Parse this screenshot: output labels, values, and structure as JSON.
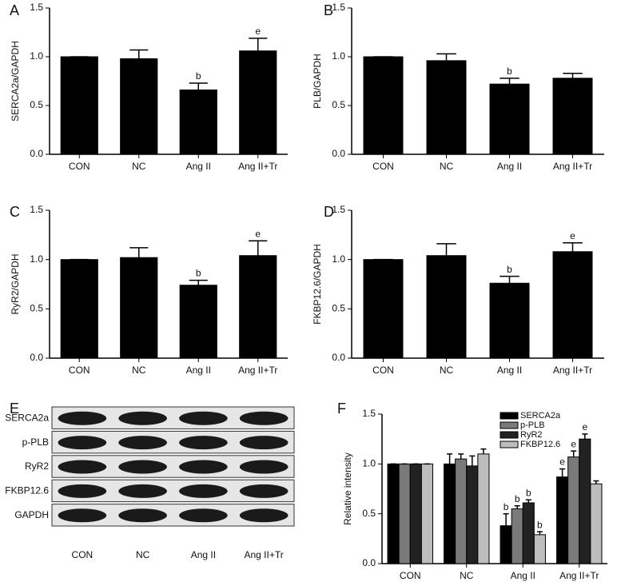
{
  "chart_data": [
    {
      "type": "bar",
      "panel": "A",
      "ylabel": "SERCA2a/GAPDH",
      "categories": [
        "CON",
        "NC",
        "Ang II",
        "Ang II+Tr"
      ],
      "values": [
        1.0,
        0.98,
        0.66,
        1.06
      ],
      "errors": [
        0,
        0.09,
        0.07,
        0.13
      ],
      "annotations": [
        null,
        null,
        "b",
        "e"
      ],
      "color": "#000000",
      "ylim": [
        0,
        1.5
      ],
      "yticks": [
        {
          "value": 0,
          "label": "0.0"
        },
        {
          "value": 0.5,
          "label": "0.5"
        },
        {
          "value": 1,
          "label": "1.0"
        },
        {
          "value": 1.5,
          "label": "1.5"
        }
      ]
    },
    {
      "type": "bar",
      "panel": "B",
      "ylabel": "PLB/GAPDH",
      "categories": [
        "CON",
        "NC",
        "Ang II",
        "Ang II+Tr"
      ],
      "values": [
        1.0,
        0.96,
        0.72,
        0.78
      ],
      "errors": [
        0,
        0.07,
        0.06,
        0.05
      ],
      "annotations": [
        null,
        null,
        "b",
        null
      ],
      "color": "#000000",
      "ylim": [
        0,
        1.5
      ],
      "yticks": [
        {
          "value": 0,
          "label": "0.0"
        },
        {
          "value": 0.5,
          "label": "0.5"
        },
        {
          "value": 1,
          "label": "1.0"
        },
        {
          "value": 1.5,
          "label": "1.5"
        }
      ]
    },
    {
      "type": "bar",
      "panel": "C",
      "ylabel": "RyR2/GAPDH",
      "categories": [
        "CON",
        "NC",
        "Ang II",
        "Ang II+Tr"
      ],
      "values": [
        1.0,
        1.02,
        0.74,
        1.04
      ],
      "errors": [
        0,
        0.1,
        0.05,
        0.15
      ],
      "annotations": [
        null,
        null,
        "b",
        "e"
      ],
      "color": "#000000",
      "ylim": [
        0,
        1.5
      ],
      "yticks": [
        {
          "value": 0,
          "label": "0.0"
        },
        {
          "value": 0.5,
          "label": "0.5"
        },
        {
          "value": 1,
          "label": "1.0"
        },
        {
          "value": 1.5,
          "label": "1.5"
        }
      ]
    },
    {
      "type": "bar",
      "panel": "D",
      "ylabel": "FKBP12.6/GAPDH",
      "categories": [
        "CON",
        "NC",
        "Ang II",
        "Ang II+Tr"
      ],
      "values": [
        1.0,
        1.04,
        0.76,
        1.08
      ],
      "errors": [
        0,
        0.12,
        0.07,
        0.09
      ],
      "annotations": [
        null,
        null,
        "b",
        "e"
      ],
      "color": "#000000",
      "ylim": [
        0,
        1.5
      ],
      "yticks": [
        {
          "value": 0,
          "label": "0.0"
        },
        {
          "value": 0.5,
          "label": "0.5"
        },
        {
          "value": 1,
          "label": "1.0"
        },
        {
          "value": 1.5,
          "label": "1.5"
        }
      ]
    },
    {
      "type": "blot",
      "panel": "E",
      "rows": [
        "SERCA2a",
        "p-PLB",
        "RyR2",
        "FKBP12.6",
        "GAPDH"
      ],
      "categories": [
        "CON",
        "NC",
        "Ang II",
        "Ang II+Tr"
      ]
    },
    {
      "type": "grouped_bar",
      "panel": "F",
      "ylabel": "Relative intensity",
      "categories": [
        "CON",
        "NC",
        "Ang II",
        "Ang II+Tr"
      ],
      "series": [
        {
          "name": "SERCA2a",
          "color": "#000000",
          "values": [
            1.0,
            1.0,
            0.38,
            0.87
          ],
          "errors": [
            0,
            0.1,
            0.12,
            0.08
          ],
          "annotations": [
            null,
            null,
            "b",
            "e"
          ]
        },
        {
          "name": "p-PLB",
          "color": "#7a7a7a",
          "values": [
            1.0,
            1.05,
            0.55,
            1.07
          ],
          "errors": [
            0,
            0.05,
            0.03,
            0.06
          ],
          "annotations": [
            null,
            null,
            "b",
            "e"
          ]
        },
        {
          "name": "RyR2",
          "color": "#222222",
          "values": [
            1.0,
            0.98,
            0.61,
            1.25
          ],
          "errors": [
            0,
            0.1,
            0.03,
            0.05
          ],
          "annotations": [
            null,
            null,
            "b",
            "e"
          ]
        },
        {
          "name": "FKBP12.6",
          "color": "#bdbdbd",
          "values": [
            1.0,
            1.1,
            0.29,
            0.8
          ],
          "errors": [
            0,
            0.05,
            0.03,
            0.03
          ],
          "annotations": [
            null,
            null,
            "b",
            null
          ]
        }
      ],
      "ylim": [
        0,
        1.5
      ],
      "yticks": [
        {
          "value": 0,
          "label": "0.0"
        },
        {
          "value": 0.5,
          "label": "0.5"
        },
        {
          "value": 1,
          "label": "1.0"
        },
        {
          "value": 1.5,
          "label": "1.5"
        }
      ]
    }
  ]
}
